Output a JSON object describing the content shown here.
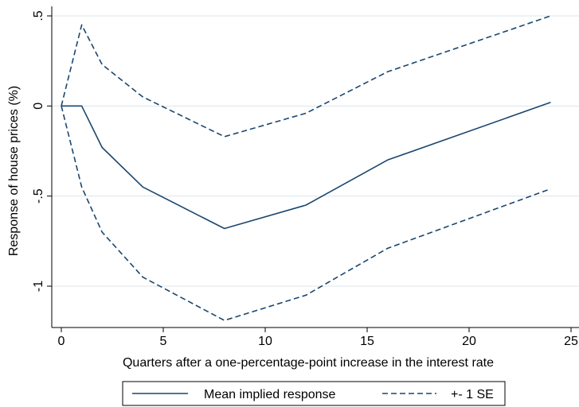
{
  "chart_data": {
    "type": "line",
    "xlabel": "Quarters after a one-percentage-point increase in the interest rate",
    "ylabel": "Response of house prices (%)",
    "xlim": [
      0,
      25
    ],
    "ylim": [
      -1.2,
      0.5
    ],
    "xticks": [
      0,
      5,
      10,
      15,
      20,
      25
    ],
    "xtick_labels": [
      "0",
      "5",
      "10",
      "15",
      "20",
      "25"
    ],
    "yticks": [
      -1,
      -0.5,
      0,
      0.5
    ],
    "ytick_labels": [
      "-1",
      "-.5",
      "0",
      ".5"
    ],
    "grid": "horizontal",
    "legend_position": "bottom",
    "series": [
      {
        "name": "Mean implied response",
        "style": "solid",
        "color": "#1a476f",
        "x": [
          0,
          1,
          2,
          4,
          8,
          12,
          16,
          24
        ],
        "y": [
          0,
          0,
          -0.23,
          -0.45,
          -0.68,
          -0.55,
          -0.3,
          0.02
        ]
      },
      {
        "name": "+- 1 SE",
        "style": "dashed",
        "color": "#1a476f",
        "x": [
          0,
          1,
          2,
          4,
          8,
          12,
          16,
          24
        ],
        "y": [
          0,
          0.45,
          0.23,
          0.05,
          -0.17,
          -0.04,
          0.19,
          0.5
        ]
      },
      {
        "name": "",
        "style": "dashed",
        "color": "#1a476f",
        "x": [
          0,
          1,
          2,
          4,
          8,
          12,
          16,
          24
        ],
        "y": [
          0,
          -0.45,
          -0.7,
          -0.95,
          -1.19,
          -1.05,
          -0.79,
          -0.46
        ]
      }
    ]
  }
}
